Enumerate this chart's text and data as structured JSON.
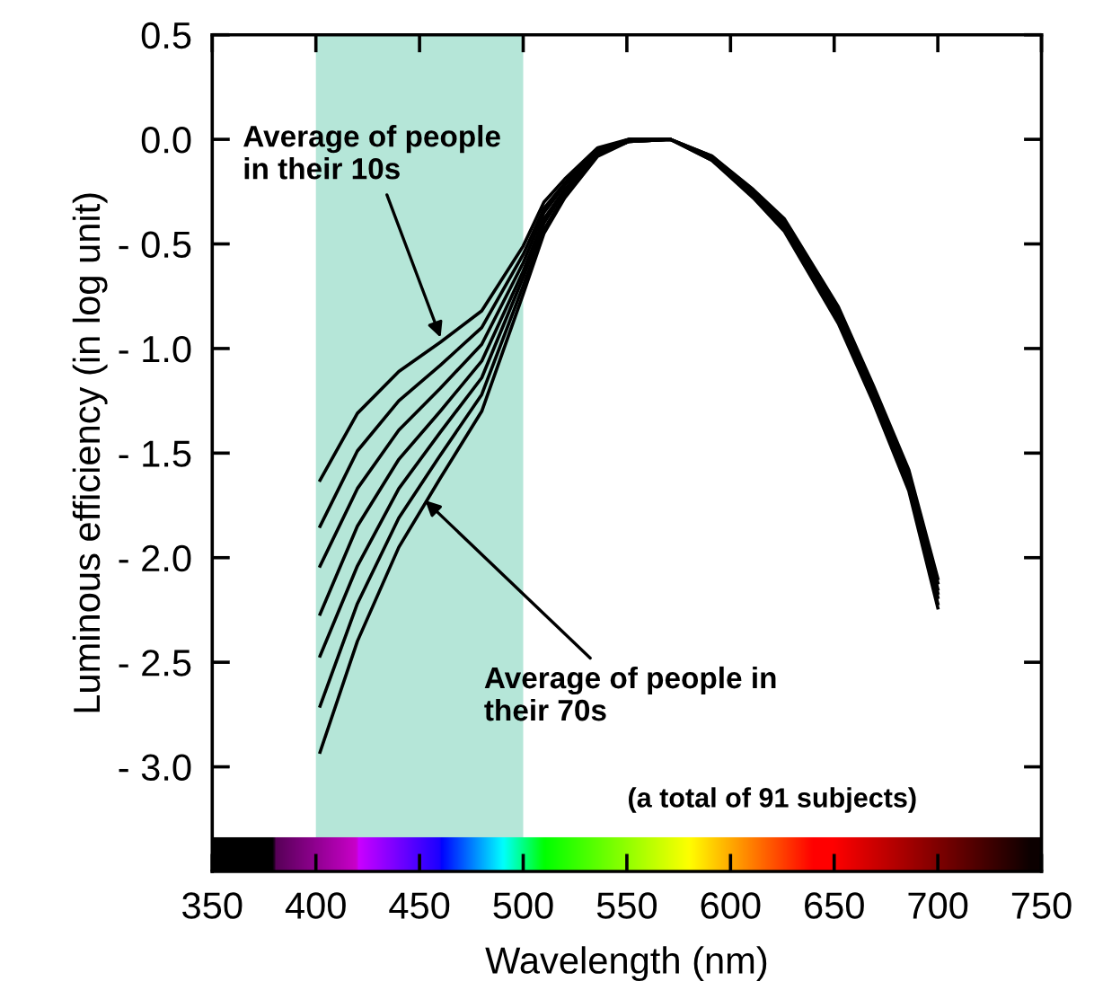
{
  "chart_data": {
    "type": "line",
    "xlabel": "Wavelength (nm)",
    "ylabel": "Luminous efficiency (in log unit)",
    "x": [
      402,
      420,
      440,
      460,
      480,
      500,
      510,
      520,
      536,
      551,
      571,
      591,
      611,
      626,
      652,
      669,
      686,
      700
    ],
    "series": [
      {
        "color": "#000000",
        "values": [
          -1.63,
          -1.31,
          -1.11,
          -0.97,
          -0.82,
          -0.51,
          -0.3,
          -0.19,
          -0.04,
          0.0,
          0.0,
          -0.08,
          -0.24,
          -0.38,
          -0.8,
          -1.18,
          -1.58,
          -2.1
        ]
      },
      {
        "color": "#000000",
        "values": [
          -1.85,
          -1.49,
          -1.25,
          -1.08,
          -0.9,
          -0.55,
          -0.33,
          -0.21,
          -0.05,
          0.0,
          0.0,
          -0.08,
          -0.25,
          -0.39,
          -0.81,
          -1.19,
          -1.6,
          -2.12
        ]
      },
      {
        "color": "#000000",
        "values": [
          -2.04,
          -1.67,
          -1.39,
          -1.19,
          -0.98,
          -0.59,
          -0.35,
          -0.22,
          -0.05,
          0.0,
          0.0,
          -0.09,
          -0.25,
          -0.4,
          -0.83,
          -1.21,
          -1.61,
          -2.15
        ]
      },
      {
        "color": "#000000",
        "values": [
          -2.27,
          -1.85,
          -1.53,
          -1.3,
          -1.06,
          -0.63,
          -0.38,
          -0.24,
          -0.06,
          -0.01,
          0.0,
          -0.09,
          -0.26,
          -0.41,
          -0.84,
          -1.22,
          -1.63,
          -2.17
        ]
      },
      {
        "color": "#000000",
        "values": [
          -2.47,
          -2.04,
          -1.67,
          -1.4,
          -1.14,
          -0.66,
          -0.4,
          -0.25,
          -0.07,
          -0.01,
          0.0,
          -0.09,
          -0.27,
          -0.42,
          -0.85,
          -1.23,
          -1.65,
          -2.19
        ]
      },
      {
        "color": "#000000",
        "values": [
          -2.71,
          -2.22,
          -1.81,
          -1.51,
          -1.22,
          -0.7,
          -0.43,
          -0.27,
          -0.07,
          -0.01,
          0.0,
          -0.1,
          -0.27,
          -0.43,
          -0.87,
          -1.25,
          -1.66,
          -2.22
        ]
      },
      {
        "color": "#000000",
        "values": [
          -2.93,
          -2.4,
          -1.95,
          -1.62,
          -1.3,
          -0.74,
          -0.45,
          -0.28,
          -0.08,
          -0.01,
          0.0,
          -0.1,
          -0.28,
          -0.44,
          -0.88,
          -1.26,
          -1.68,
          -2.24
        ]
      }
    ],
    "xlim": [
      350,
      750
    ],
    "xticks": [
      350,
      400,
      450,
      500,
      550,
      600,
      650,
      700,
      750
    ],
    "ylim": [
      -3.5,
      0.5
    ],
    "yticks": [
      {
        "value": 0.5,
        "label": "0.5"
      },
      {
        "value": 0.0,
        "label": "0.0"
      },
      {
        "value": -0.5,
        "label": "- 0.5"
      },
      {
        "value": -1.0,
        "label": "- 1.0"
      },
      {
        "value": -1.5,
        "label": "- 1.5"
      },
      {
        "value": -2.0,
        "label": "- 2.0"
      },
      {
        "value": -2.5,
        "label": "- 2.5"
      },
      {
        "value": -3.0,
        "label": "- 3.0"
      }
    ],
    "bands": [
      {
        "axis": "x",
        "from": 400,
        "to": 500,
        "color": "#b5e6d8"
      }
    ],
    "annotations": [
      {
        "text": "Average of people\nin their 10s",
        "x": 461,
        "y": -0.97
      },
      {
        "text": "Average of people in\ntheir 70s",
        "x": 451,
        "y": -1.71
      },
      "(a total of 91 subjects)"
    ],
    "grid": false,
    "legend": false,
    "marker": "none",
    "line_style": "solid"
  }
}
